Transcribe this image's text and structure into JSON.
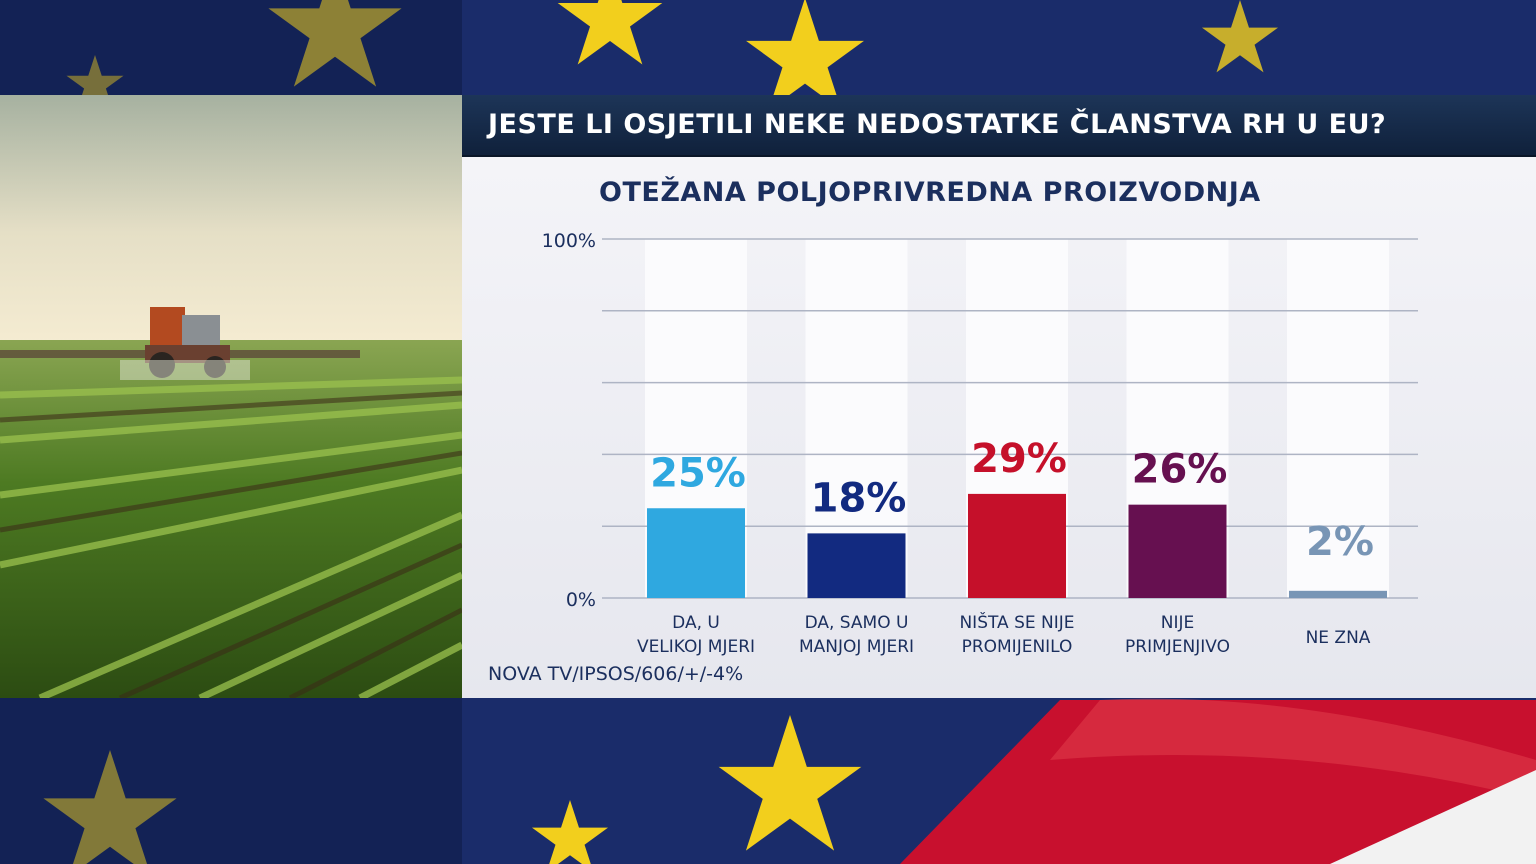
{
  "header": {
    "title": "JESTE LI OSJETILI NEKE NEDOSTATKE ČLANSTVA RH U EU?"
  },
  "source": "NOVA TV/IPSOS/606/+/-4%",
  "colors": {
    "flag_blue": "#1a2c6a",
    "flag_star": "#f2cf1d",
    "flag_red": "#c8102e",
    "header_bg": "#142741",
    "panel_bg": "#eeeef3",
    "text_navy": "#1b2f5e"
  },
  "chart_data": {
    "type": "bar",
    "title": "OTEŽANA POLJOPRIVREDNA PROIZVODNJA",
    "xlabel": "",
    "ylabel": "",
    "ylim": [
      0,
      100
    ],
    "y_tick_labels": [
      "100%",
      "0%"
    ],
    "grid": true,
    "categories": [
      [
        "DA, U",
        "VELIKOJ MJERI"
      ],
      [
        "DA, SAMO U",
        "MANJOJ MJERI"
      ],
      [
        "NIŠTA SE NIJE",
        "PROMIJENILO"
      ],
      [
        "NIJE",
        "PRIMJENJIVO"
      ],
      [
        "NE ZNA"
      ]
    ],
    "values": [
      25,
      18,
      29,
      26,
      2
    ],
    "value_labels": [
      "25%",
      "18%",
      "29%",
      "26%",
      "2%"
    ],
    "bar_colors": [
      "#2fa8e0",
      "#122a80",
      "#c5102a",
      "#661050",
      "#7895b5"
    ]
  }
}
